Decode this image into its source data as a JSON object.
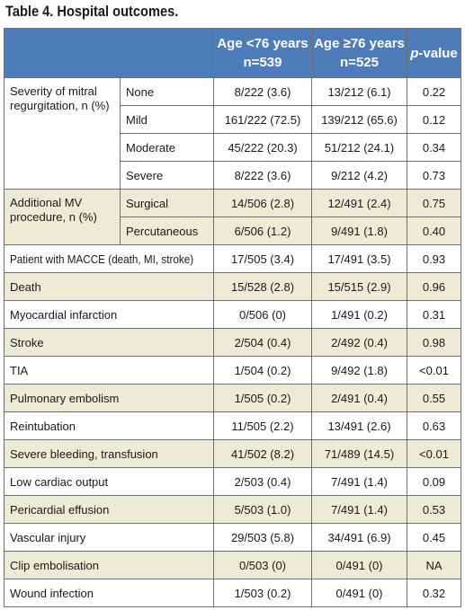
{
  "title": "Table 4. Hospital outcomes.",
  "columns": {
    "group1_line1": "Age <76 years",
    "group1_line2": "n=539",
    "group2_line1": "Age ≥76 years",
    "group2_line2": "n=525",
    "pvalue_italic": "p",
    "pvalue_rest": "-value"
  },
  "mr": {
    "label": "Severity of mitral regurgitation, n (%)",
    "rows": [
      {
        "sub": "None",
        "a": "8/222 (3.6)",
        "b": "13/212 (6.1)",
        "p": "0.22"
      },
      {
        "sub": "Mild",
        "a": "161/222 (72.5)",
        "b": "139/212 (65.6)",
        "p": "0.12"
      },
      {
        "sub": "Moderate",
        "a": "45/222 (20.3)",
        "b": "51/212 (24.1)",
        "p": "0.34"
      },
      {
        "sub": "Severe",
        "a": "8/222 (3.6)",
        "b": "9/212 (4.2)",
        "p": "0.73"
      }
    ]
  },
  "mv": {
    "label": "Additional MV procedure, n (%)",
    "rows": [
      {
        "sub": "Surgical",
        "a": "14/506 (2.8)",
        "b": "12/491 (2.4)",
        "p": "0.75"
      },
      {
        "sub": "Percutaneous",
        "a": "6/506 (1.2)",
        "b": "9/491 (1.8)",
        "p": "0.40"
      }
    ]
  },
  "rows": [
    {
      "label": "Patient with MACCE (death, MI, stroke)",
      "a": "17/505 (3.4)",
      "b": "17/491 (3.5)",
      "p": "0.93"
    },
    {
      "label": "Death",
      "a": "15/528 (2.8)",
      "b": "15/515 (2.9)",
      "p": "0.96"
    },
    {
      "label": "Myocardial infarction",
      "a": "0/506 (0)",
      "b": "1/491 (0.2)",
      "p": "0.31"
    },
    {
      "label": "Stroke",
      "a": "2/504 (0.4)",
      "b": "2/492 (0.4)",
      "p": "0.98"
    },
    {
      "label": "TIA",
      "a": "1/504 (0.2)",
      "b": "9/492 (1.8)",
      "p": "<0.01"
    },
    {
      "label": "Pulmonary embolism",
      "a": "1/505 (0.2)",
      "b": "2/491 (0.4)",
      "p": "0.55"
    },
    {
      "label": "Reintubation",
      "a": "11/505 (2.2)",
      "b": "13/491 (2.6)",
      "p": "0.63"
    },
    {
      "label": "Severe bleeding, transfusion",
      "a": "41/502 (8.2)",
      "b": "71/489 (14.5)",
      "p": "<0.01"
    },
    {
      "label": "Low cardiac output",
      "a": "2/503 (0.4)",
      "b": "7/491 (1.4)",
      "p": "0.09"
    },
    {
      "label": "Pericardial effusion",
      "a": "5/503 (1.0)",
      "b": "7/491 (1.4)",
      "p": "0.53"
    },
    {
      "label": "Vascular injury",
      "a": "29/503 (5.8)",
      "b": "34/491 (6.9)",
      "p": "0.45"
    },
    {
      "label": "Clip embolisation",
      "a": "0/503 (0)",
      "b": "0/491 (0)",
      "p": "NA"
    },
    {
      "label": "Wound infection",
      "a": "1/503 (0.2)",
      "b": "0/491 (0)",
      "p": "0.32"
    }
  ],
  "colors": {
    "header": "#4d7cb8",
    "band": "#ecebd6",
    "border": "#6f6f6f"
  }
}
